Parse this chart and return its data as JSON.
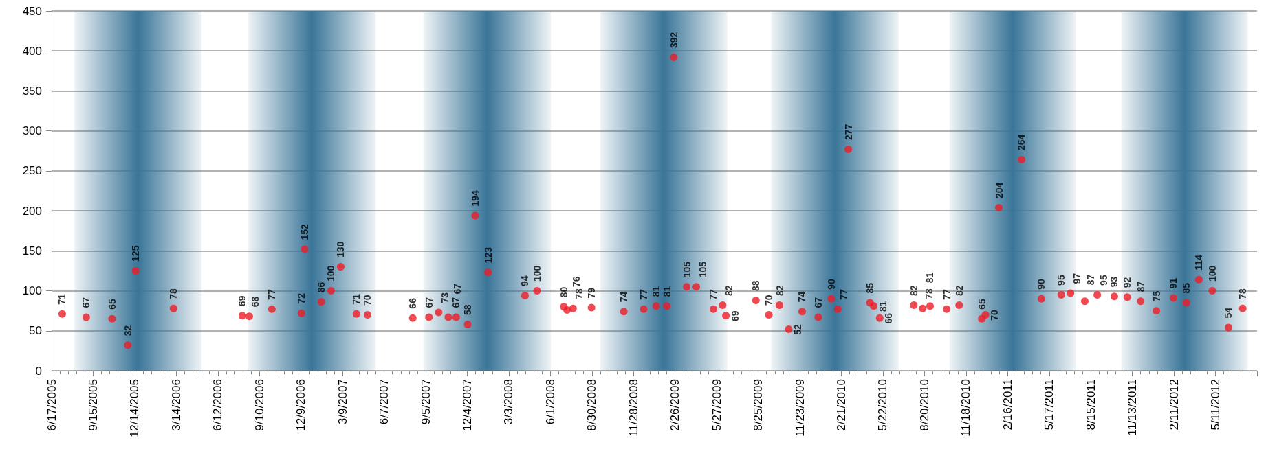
{
  "chart_data": {
    "type": "scatter",
    "x": [
      "2005-07-10",
      "2005-08-31",
      "2005-10-26",
      "2005-11-29",
      "2005-12-16",
      "2006-03-08",
      "2006-08-04",
      "2006-08-19",
      "2006-10-07",
      "2006-12-10",
      "2006-12-17",
      "2007-01-22",
      "2007-02-12",
      "2007-03-05",
      "2007-04-08",
      "2007-05-02",
      "2007-08-08",
      "2007-09-12",
      "2007-10-03",
      "2007-10-24",
      "2007-11-10",
      "2007-12-05",
      "2007-12-21",
      "2008-01-18",
      "2008-04-07",
      "2008-05-03",
      "2008-06-30",
      "2008-07-07",
      "2008-07-20",
      "2008-08-29",
      "2008-11-07",
      "2008-12-20",
      "2009-01-16",
      "2009-02-08",
      "2009-02-23",
      "2009-03-23",
      "2009-04-13",
      "2009-05-20",
      "2009-06-09",
      "2009-06-16",
      "2009-08-20",
      "2009-09-17",
      "2009-10-10",
      "2009-10-30",
      "2009-11-28",
      "2010-01-02",
      "2010-01-30",
      "2010-02-13",
      "2010-03-08",
      "2010-04-24",
      "2010-05-02",
      "2010-05-15",
      "2010-07-28",
      "2010-08-16",
      "2010-09-01",
      "2010-10-07",
      "2010-11-03",
      "2010-12-22",
      "2010-12-30",
      "2011-01-28",
      "2011-03-18",
      "2011-04-30",
      "2011-06-12",
      "2011-07-02",
      "2011-08-02",
      "2011-08-29",
      "2011-10-05",
      "2011-11-02",
      "2011-12-01",
      "2012-01-04",
      "2012-02-10",
      "2012-03-09",
      "2012-04-05",
      "2012-05-04",
      "2012-06-08",
      "2012-07-09"
    ],
    "values": [
      71,
      67,
      65,
      32,
      125,
      78,
      69,
      68,
      77,
      72,
      152,
      86,
      100,
      130,
      71,
      70,
      66,
      67,
      73,
      67,
      67,
      58,
      194,
      123,
      94,
      100,
      80,
      76,
      78,
      79,
      74,
      77,
      81,
      81,
      392,
      105,
      105,
      77,
      82,
      69,
      88,
      70,
      82,
      52,
      74,
      67,
      90,
      77,
      277,
      85,
      81,
      66,
      82,
      78,
      81,
      77,
      82,
      65,
      70,
      204,
      264,
      90,
      95,
      97,
      87,
      95,
      93,
      92,
      87,
      75,
      91,
      85,
      114,
      100,
      54,
      78
    ],
    "color": "#ee1c25",
    "marker": "circle",
    "data_labels": true,
    "grid": "y",
    "xlim": [
      "2005-06-17",
      "2012-08-09"
    ],
    "xticks": [
      {
        "value": "2005-06-17",
        "label": "6/17/2005"
      },
      {
        "value": "2005-09-15",
        "label": "9/15/2005"
      },
      {
        "value": "2005-12-14",
        "label": "12/14/2005"
      },
      {
        "value": "2006-03-14",
        "label": "3/14/2006"
      },
      {
        "value": "2006-06-12",
        "label": "6/12/2006"
      },
      {
        "value": "2006-09-10",
        "label": "9/10/2006"
      },
      {
        "value": "2006-12-09",
        "label": "12/9/2006"
      },
      {
        "value": "2007-03-09",
        "label": "3/9/2007"
      },
      {
        "value": "2007-06-07",
        "label": "6/7/2007"
      },
      {
        "value": "2007-09-05",
        "label": "9/5/2007"
      },
      {
        "value": "2007-12-04",
        "label": "12/4/2007"
      },
      {
        "value": "2008-03-03",
        "label": "3/3/2008"
      },
      {
        "value": "2008-06-01",
        "label": "6/1/2008"
      },
      {
        "value": "2008-08-30",
        "label": "8/30/2008"
      },
      {
        "value": "2008-11-28",
        "label": "11/28/2008"
      },
      {
        "value": "2009-02-26",
        "label": "2/26/2009"
      },
      {
        "value": "2009-05-27",
        "label": "5/27/2009"
      },
      {
        "value": "2009-08-25",
        "label": "8/25/2009"
      },
      {
        "value": "2009-11-23",
        "label": "11/23/2009"
      },
      {
        "value": "2010-02-21",
        "label": "2/21/2010"
      },
      {
        "value": "2010-05-22",
        "label": "5/22/2010"
      },
      {
        "value": "2010-08-20",
        "label": "8/20/2010"
      },
      {
        "value": "2010-11-18",
        "label": "11/18/2010"
      },
      {
        "value": "2011-02-16",
        "label": "2/16/2011"
      },
      {
        "value": "2011-05-17",
        "label": "5/17/2011"
      },
      {
        "value": "2011-08-15",
        "label": "8/15/2011"
      },
      {
        "value": "2011-11-13",
        "label": "11/13/2011"
      },
      {
        "value": "2012-02-11",
        "label": "2/11/2012"
      },
      {
        "value": "2012-05-11",
        "label": "5/11/2012"
      }
    ],
    "ylim": [
      0,
      450
    ],
    "yticks": [
      0,
      50,
      100,
      150,
      200,
      250,
      300,
      350,
      400,
      450
    ],
    "bands": [
      {
        "axis": "x",
        "from": "2005-08-05",
        "to": "2006-05-08",
        "color": "#3a7598"
      },
      {
        "axis": "x",
        "from": "2006-08-16",
        "to": "2007-05-20",
        "color": "#3a7598"
      },
      {
        "axis": "x",
        "from": "2007-08-31",
        "to": "2008-06-02",
        "color": "#3a7598"
      },
      {
        "axis": "x",
        "from": "2008-09-17",
        "to": "2009-06-19",
        "color": "#3a7598"
      },
      {
        "axis": "x",
        "from": "2009-09-22",
        "to": "2010-06-25",
        "color": "#3a7598"
      },
      {
        "axis": "x",
        "from": "2010-10-13",
        "to": "2011-07-14",
        "color": "#3a7598"
      },
      {
        "axis": "x",
        "from": "2011-10-20",
        "to": "2012-07-20",
        "color": "#3a7598"
      }
    ]
  }
}
